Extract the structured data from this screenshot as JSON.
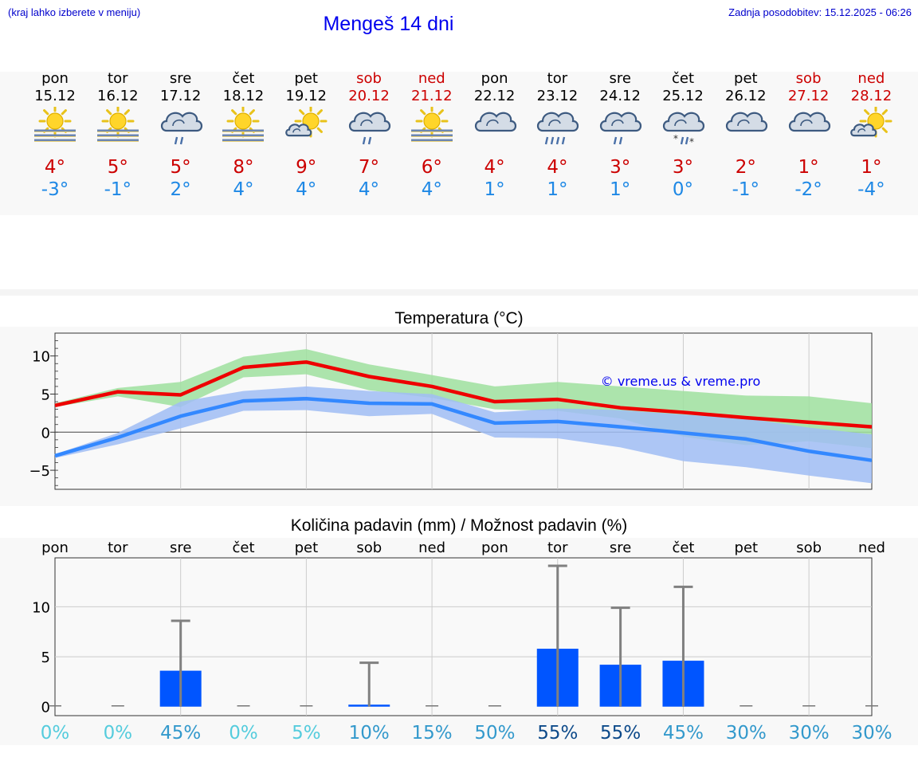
{
  "header": {
    "note": "(kraj lahko izberete v meniju)",
    "title": "Mengeš 14 dni",
    "updated": "Zadnja posodobitev: 15.12.2025 - 06:26"
  },
  "colors": {
    "max": "#ee0000",
    "min": "#3388ff",
    "max_band": "#9fe09f",
    "min_band": "#a0bdf5",
    "bar": "#0055ff",
    "weekday": "#000000",
    "weekend": "#cc0000"
  },
  "days": [
    {
      "name": "pon",
      "date": "15.12",
      "max": "4°",
      "min": "-3°",
      "icon": "fog-sun-icon",
      "weekend": false
    },
    {
      "name": "tor",
      "date": "16.12",
      "max": "5°",
      "min": "-1°",
      "icon": "fog-sun-icon",
      "weekend": false
    },
    {
      "name": "sre",
      "date": "17.12",
      "max": "5°",
      "min": "2°",
      "icon": "cloud-light-rain-icon",
      "weekend": false
    },
    {
      "name": "čet",
      "date": "18.12",
      "max": "8°",
      "min": "4°",
      "icon": "fog-sun-icon",
      "weekend": false
    },
    {
      "name": "pet",
      "date": "19.12",
      "max": "9°",
      "min": "4°",
      "icon": "partly-cloudy-icon",
      "weekend": false
    },
    {
      "name": "sob",
      "date": "20.12",
      "max": "7°",
      "min": "4°",
      "icon": "cloud-light-rain-icon",
      "weekend": true
    },
    {
      "name": "ned",
      "date": "21.12",
      "max": "6°",
      "min": "4°",
      "icon": "fog-sun-icon",
      "weekend": true
    },
    {
      "name": "pon",
      "date": "22.12",
      "max": "4°",
      "min": "1°",
      "icon": "overcast-icon",
      "weekend": false
    },
    {
      "name": "tor",
      "date": "23.12",
      "max": "4°",
      "min": "1°",
      "icon": "cloud-rain-icon",
      "weekend": false
    },
    {
      "name": "sre",
      "date": "24.12",
      "max": "3°",
      "min": "1°",
      "icon": "cloud-light-rain-icon",
      "weekend": false
    },
    {
      "name": "čet",
      "date": "25.12",
      "max": "3°",
      "min": "0°",
      "icon": "cloud-sleet-icon",
      "weekend": false
    },
    {
      "name": "pet",
      "date": "26.12",
      "max": "2°",
      "min": "-1°",
      "icon": "overcast-icon",
      "weekend": false
    },
    {
      "name": "sob",
      "date": "27.12",
      "max": "1°",
      "min": "-2°",
      "icon": "overcast-icon",
      "weekend": true
    },
    {
      "name": "ned",
      "date": "28.12",
      "max": "1°",
      "min": "-4°",
      "icon": "partly-cloudy-icon",
      "weekend": true
    }
  ],
  "chart_data": [
    {
      "type": "line",
      "title": "Temperatura (°C)",
      "watermark": "© vreme.us & vreme.pro",
      "ylim": [
        -7.5,
        13
      ],
      "yticks": [
        -5,
        0,
        5,
        10
      ],
      "ytick_labels": [
        "−5",
        "0",
        "5",
        "10"
      ],
      "grid": true,
      "x": [
        0,
        1,
        2,
        3,
        4,
        5,
        6,
        7,
        8,
        9,
        10,
        11,
        12,
        13
      ],
      "series": [
        {
          "name": "max",
          "values": [
            3.5,
            5.3,
            4.9,
            8.5,
            9.2,
            7.3,
            6.0,
            4.0,
            4.3,
            3.2,
            2.6,
            1.9,
            1.3,
            0.7
          ],
          "band_low": [
            3.3,
            4.7,
            3.3,
            7.2,
            7.6,
            5.5,
            4.5,
            3.0,
            2.8,
            1.8,
            -0.6,
            -1.7,
            -1.2,
            -2.1
          ],
          "band_high": [
            3.8,
            5.8,
            6.6,
            9.9,
            10.9,
            8.9,
            7.5,
            6.0,
            6.6,
            6.0,
            5.4,
            4.8,
            4.7,
            3.8
          ]
        },
        {
          "name": "min",
          "values": [
            -3.1,
            -0.7,
            2.1,
            4.1,
            4.4,
            3.8,
            3.7,
            1.2,
            1.4,
            0.7,
            -0.1,
            -0.9,
            -2.5,
            -3.7
          ],
          "band_low": [
            -3.4,
            -1.6,
            0.5,
            2.8,
            2.9,
            2.1,
            2.4,
            -0.7,
            -0.8,
            -2.0,
            -3.8,
            -4.6,
            -5.7,
            -6.7
          ],
          "band_high": [
            -2.9,
            -0.1,
            4.0,
            5.4,
            6.0,
            5.4,
            5.0,
            2.6,
            3.1,
            2.9,
            2.3,
            1.8,
            0.6,
            -0.3
          ]
        }
      ]
    },
    {
      "type": "bar",
      "title": "Količina padavin (mm) / Možnost padavin (%)",
      "categories": [
        "pon",
        "tor",
        "sre",
        "čet",
        "pet",
        "sob",
        "ned",
        "pon",
        "tor",
        "sre",
        "čet",
        "pet",
        "sob",
        "ned"
      ],
      "ylim": [
        -0.9,
        14.9
      ],
      "yticks": [
        0,
        5,
        10
      ],
      "ytick_labels": [
        "0",
        "5",
        "10"
      ],
      "grid": true,
      "values": [
        0,
        0,
        3.6,
        0,
        0,
        0.2,
        0,
        0,
        5.8,
        4.2,
        4.6,
        0,
        0,
        0
      ],
      "error_high": [
        0,
        0,
        8.6,
        0,
        0,
        4.4,
        0,
        0,
        14.1,
        9.9,
        12.0,
        0,
        0,
        0
      ],
      "probability": [
        "0%",
        "0%",
        "45%",
        "0%",
        "5%",
        "10%",
        "15%",
        "50%",
        "55%",
        "55%",
        "45%",
        "30%",
        "30%",
        "30%"
      ],
      "prob_colors": [
        "#55ccdd",
        "#55ccdd",
        "#3399cc",
        "#55ccdd",
        "#55ccdd",
        "#3399cc",
        "#3399cc",
        "#3399cc",
        "#0d4a8a",
        "#0d4a8a",
        "#3399cc",
        "#3399cc",
        "#3399cc",
        "#3399cc"
      ]
    }
  ]
}
